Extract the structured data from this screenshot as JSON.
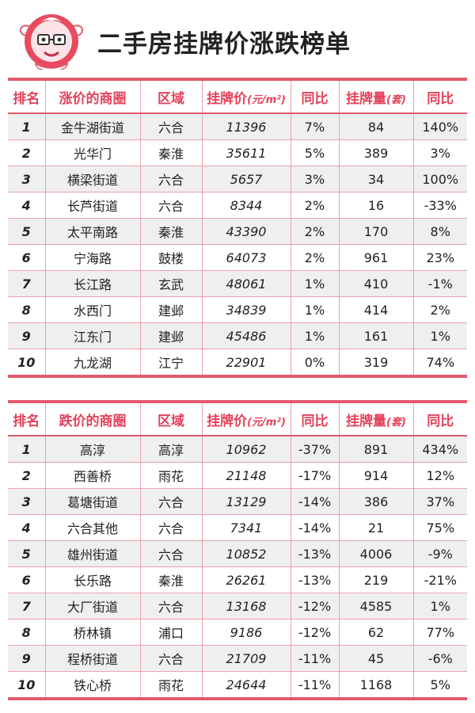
{
  "header": {
    "title": "二手房挂牌价涨跌榜单",
    "logo_icon": "mascot-logo-icon"
  },
  "colors": {
    "accent": "#e35a6b",
    "header_text": "#e3425a",
    "row_shade": "#efefef"
  },
  "tables": {
    "rise": {
      "headers": [
        "排名",
        "涨价的商圈",
        "区域",
        "挂牌价",
        "同比",
        "挂牌量",
        "同比"
      ],
      "price_unit": "(元/m²)",
      "volume_unit": "(套)",
      "rows": [
        [
          "1",
          "金牛湖街道",
          "六合",
          "11396",
          "7%",
          "84",
          "140%"
        ],
        [
          "2",
          "光华门",
          "秦淮",
          "35611",
          "5%",
          "389",
          "3%"
        ],
        [
          "3",
          "横梁街道",
          "六合",
          "5657",
          "3%",
          "34",
          "100%"
        ],
        [
          "4",
          "长芦街道",
          "六合",
          "8344",
          "2%",
          "16",
          "-33%"
        ],
        [
          "5",
          "太平南路",
          "秦淮",
          "43390",
          "2%",
          "170",
          "8%"
        ],
        [
          "6",
          "宁海路",
          "鼓楼",
          "64073",
          "2%",
          "961",
          "23%"
        ],
        [
          "7",
          "长江路",
          "玄武",
          "48061",
          "1%",
          "410",
          "-1%"
        ],
        [
          "8",
          "水西门",
          "建邺",
          "34839",
          "1%",
          "414",
          "2%"
        ],
        [
          "9",
          "江东门",
          "建邺",
          "45486",
          "1%",
          "161",
          "1%"
        ],
        [
          "10",
          "九龙湖",
          "江宁",
          "22901",
          "0%",
          "319",
          "74%"
        ]
      ]
    },
    "fall": {
      "headers": [
        "排名",
        "跌价的商圈",
        "区域",
        "挂牌价",
        "同比",
        "挂牌量",
        "同比"
      ],
      "price_unit": "(元/m²)",
      "volume_unit": "(套)",
      "rows": [
        [
          "1",
          "高淳",
          "高淳",
          "10962",
          "-37%",
          "891",
          "434%"
        ],
        [
          "2",
          "西善桥",
          "雨花",
          "21148",
          "-17%",
          "914",
          "12%"
        ],
        [
          "3",
          "葛塘街道",
          "六合",
          "13129",
          "-14%",
          "386",
          "37%"
        ],
        [
          "4",
          "六合其他",
          "六合",
          "7341",
          "-14%",
          "21",
          "75%"
        ],
        [
          "5",
          "雄州街道",
          "六合",
          "10852",
          "-13%",
          "4006",
          "-9%"
        ],
        [
          "6",
          "长乐路",
          "秦淮",
          "26261",
          "-13%",
          "219",
          "-21%"
        ],
        [
          "7",
          "大厂街道",
          "六合",
          "13168",
          "-12%",
          "4585",
          "1%"
        ],
        [
          "8",
          "桥林镇",
          "浦口",
          "9186",
          "-12%",
          "62",
          "77%"
        ],
        [
          "9",
          "程桥街道",
          "六合",
          "21709",
          "-11%",
          "45",
          "-6%"
        ],
        [
          "10",
          "铁心桥",
          "雨花",
          "24644",
          "-11%",
          "1168",
          "5%"
        ]
      ]
    }
  }
}
